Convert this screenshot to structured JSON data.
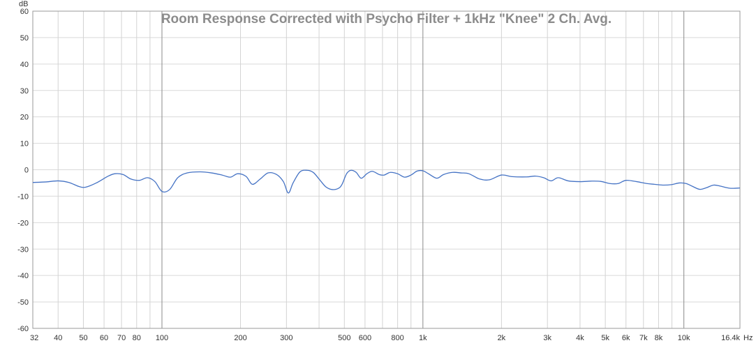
{
  "chart_data": {
    "type": "line",
    "title": "Room Response Corrected with Psycho Filter + 1kHz \"Knee\" 2 Ch. Avg.",
    "ylabel": "dB",
    "xunit": "Hz",
    "x_scale": "log",
    "xlim": [
      32,
      16400
    ],
    "ylim": [
      -60,
      60
    ],
    "grid": true,
    "y_ticks": [
      60,
      50,
      40,
      30,
      20,
      10,
      0,
      -10,
      -20,
      -30,
      -40,
      -50,
      -60
    ],
    "y_tick_labels": [
      "60",
      "50",
      "40",
      "30",
      "20",
      "10",
      "0",
      "-10",
      "-20",
      "-30",
      "-40",
      "-50",
      "-60"
    ],
    "x_ticks": [
      32,
      40,
      50,
      60,
      70,
      80,
      100,
      200,
      300,
      500,
      600,
      800,
      1000,
      2000,
      3000,
      4000,
      5000,
      6000,
      7000,
      8000,
      10000,
      16400
    ],
    "x_tick_labels": [
      "32",
      "40",
      "50",
      "60",
      "70",
      "80",
      "100",
      "200",
      "300",
      "500",
      "600",
      "800",
      "1k",
      "2k",
      "3k",
      "4k",
      "5k",
      "6k",
      "7k",
      "8k",
      "10k",
      "16.4k"
    ],
    "x_minor_grid": [
      90,
      400,
      700,
      900,
      9000
    ],
    "x_major_grid": [
      100,
      1000,
      10000
    ],
    "line_color": "#4472c4",
    "series": [
      {
        "x": [
          32,
          36,
          40,
          44,
          48,
          51,
          56,
          62,
          66,
          71,
          76,
          82,
          88,
          94,
          100,
          107,
          115,
          125,
          140,
          155,
          170,
          183,
          195,
          210,
          222,
          238,
          255,
          275,
          292,
          305,
          318,
          338,
          360,
          380,
          400,
          425,
          450,
          475,
          490,
          510,
          530,
          555,
          580,
          610,
          640,
          680,
          710,
          750,
          800,
          850,
          900,
          950,
          1000,
          1050,
          1130,
          1200,
          1300,
          1400,
          1500,
          1650,
          1800,
          2000,
          2200,
          2500,
          2700,
          2900,
          3100,
          3300,
          3600,
          4000,
          4400,
          4800,
          5200,
          5600,
          6000,
          6600,
          7200,
          7700,
          8300,
          9000,
          9600,
          10200,
          10800,
          11500,
          12200,
          13000,
          13800,
          15000,
          16400
        ],
        "y": [
          -4.8,
          -4.6,
          -4.2,
          -4.8,
          -6.3,
          -6.6,
          -5.0,
          -2.5,
          -1.5,
          -1.8,
          -3.5,
          -4.0,
          -3.0,
          -4.5,
          -8.2,
          -7.5,
          -3.0,
          -1.2,
          -0.8,
          -1.2,
          -2.0,
          -2.8,
          -1.5,
          -2.5,
          -5.5,
          -3.5,
          -1.2,
          -1.8,
          -4.5,
          -8.8,
          -5.0,
          -0.8,
          -0.2,
          -1.0,
          -3.5,
          -6.5,
          -7.5,
          -7.0,
          -5.5,
          -1.5,
          -0.2,
          -1.0,
          -3.2,
          -1.5,
          -0.6,
          -1.8,
          -2.0,
          -1.0,
          -1.5,
          -2.8,
          -2.0,
          -0.5,
          -0.4,
          -1.5,
          -3.2,
          -1.8,
          -1.0,
          -1.2,
          -1.5,
          -3.5,
          -3.8,
          -2.0,
          -2.6,
          -2.7,
          -2.4,
          -3.0,
          -4.2,
          -3.0,
          -4.2,
          -4.5,
          -4.3,
          -4.4,
          -5.2,
          -5.2,
          -4.0,
          -4.5,
          -5.2,
          -5.5,
          -5.8,
          -5.6,
          -5.0,
          -5.2,
          -6.3,
          -7.4,
          -6.8,
          -5.8,
          -6.2,
          -7.0,
          -6.9
        ]
      }
    ]
  }
}
